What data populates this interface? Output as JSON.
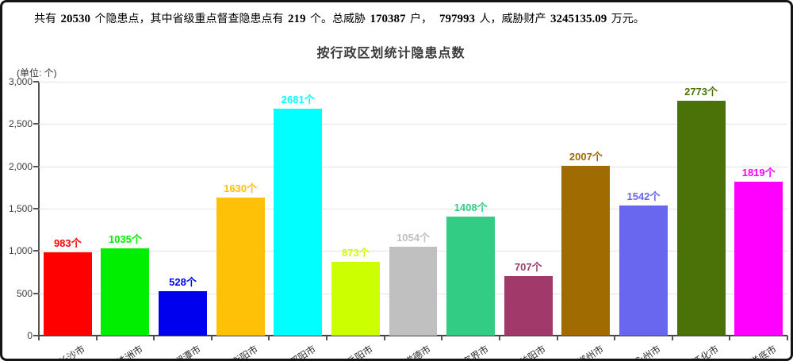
{
  "summary": {
    "segments": [
      {
        "text": "共有 ",
        "bold": false
      },
      {
        "text": "20530",
        "bold": true
      },
      {
        "text": " 个隐患点，其中省级重点督查隐患点有 ",
        "bold": false
      },
      {
        "text": "219",
        "bold": true
      },
      {
        "text": " 个。总威胁 ",
        "bold": false
      },
      {
        "text": "170387",
        "bold": true
      },
      {
        "text": " 户，  ",
        "bold": false
      },
      {
        "text": "797993",
        "bold": true
      },
      {
        "text": " 人，威胁财产 ",
        "bold": false
      },
      {
        "text": "3245135.09",
        "bold": true
      },
      {
        "text": " 万元。",
        "bold": false
      }
    ]
  },
  "chart_data": {
    "type": "bar",
    "title": "按行政区划统计隐患点数",
    "unit_label": "(单位: 个)",
    "xlabel": "",
    "ylabel": "",
    "grid": true,
    "legend": "none",
    "ylim": [
      0,
      3000
    ],
    "ytick_values": [
      0,
      500,
      1000,
      1500,
      2000,
      2500,
      3000
    ],
    "ytick_labels": [
      "0",
      "500",
      "1,000",
      "1,500",
      "2,000",
      "2,500",
      "3,000"
    ],
    "categories": [
      "长沙市",
      "株洲市",
      "湘潭市",
      "衡阳市",
      "邵阳市",
      "岳阳市",
      "常德市",
      "张家界市",
      "益阳市",
      "郴州市",
      "永州市",
      "怀化市",
      "娄底市"
    ],
    "values": [
      983,
      1035,
      528,
      1630,
      2681,
      873,
      1054,
      1408,
      707,
      2007,
      1542,
      2773,
      1819
    ],
    "value_labels": [
      "983个",
      "1035个",
      "528个",
      "1630个",
      "873个",
      "1054个",
      "1408个",
      "707个",
      "2007个",
      "1542个",
      "2773个",
      "1819个",
      "2681个"
    ],
    "value_labels_ordered": [
      "983个",
      "1035个",
      "528个",
      "1630个",
      "2681个",
      "873个",
      "1054个",
      "1408个",
      "707个",
      "2007个",
      "1542个",
      "2773个",
      "1819个"
    ],
    "bar_colors": [
      "#FF0000",
      "#00EE00",
      "#0000EE",
      "#FFC107",
      "#00FFFF",
      "#CCFF00",
      "#C0C0C0",
      "#33CC85",
      "#A13A6B",
      "#A06B00",
      "#6966F0",
      "#4A7209",
      "#FF00FF"
    ]
  }
}
